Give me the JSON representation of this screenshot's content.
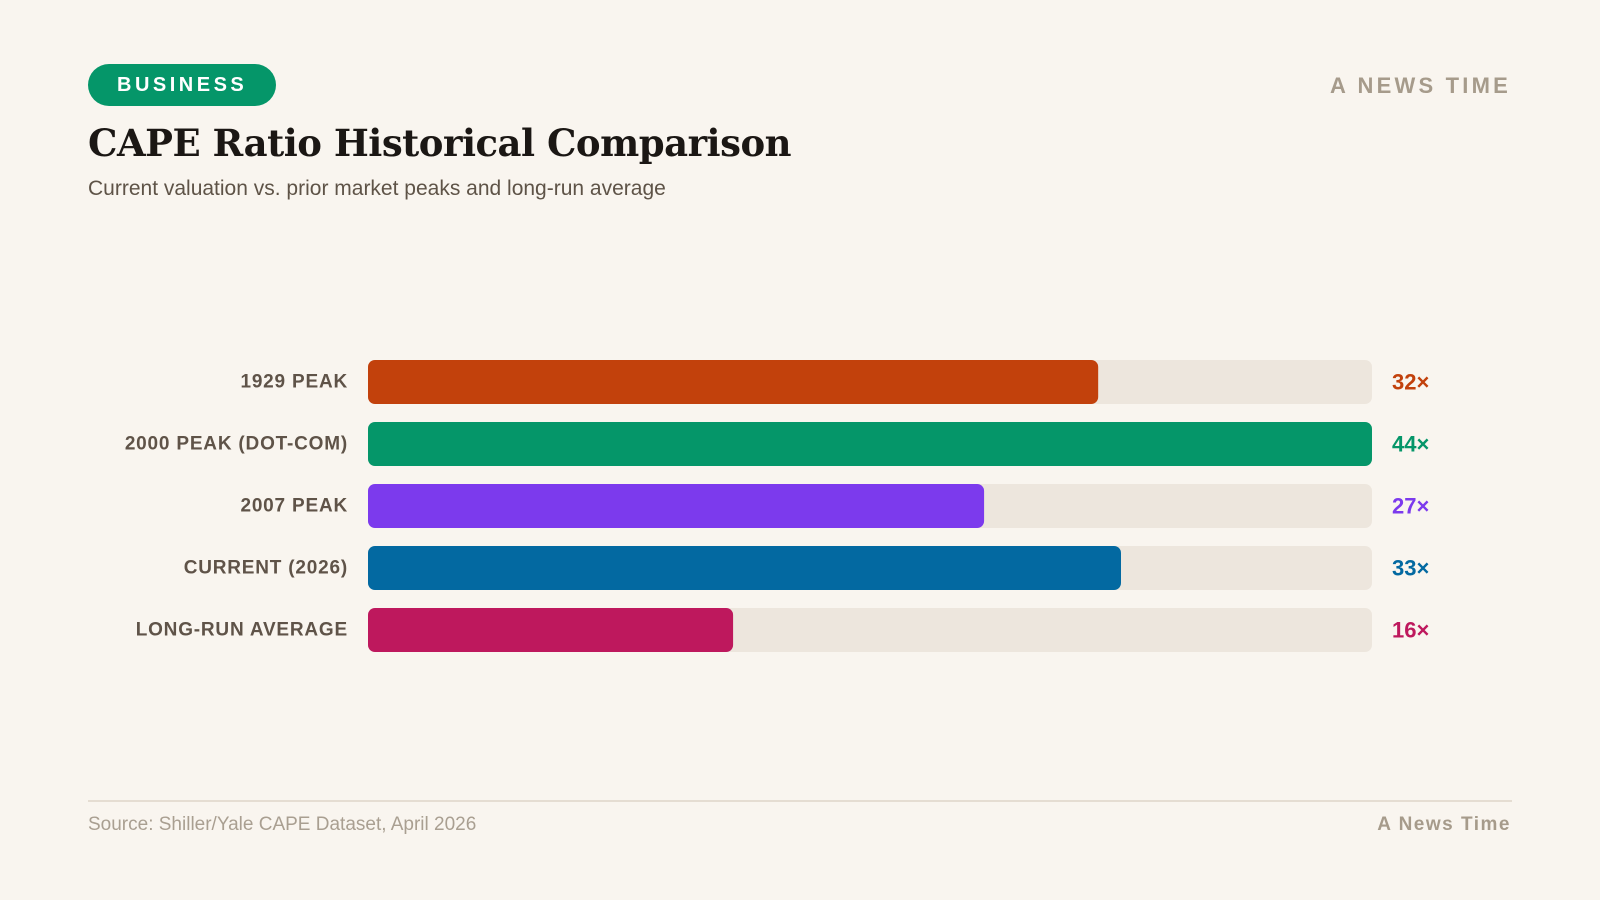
{
  "header": {
    "category_badge": "BUSINESS",
    "brand": "A NEWS TIME",
    "title": "CAPE Ratio Historical Comparison",
    "subtitle": "Current valuation vs. prior market peaks and long-run average"
  },
  "footer": {
    "source": "Source: Shiller/Yale CAPE Dataset, April 2026",
    "brand": "A News Time"
  },
  "colors": {
    "badge": "#059669",
    "track": "#ede6dd",
    "text_dark": "#1b1714",
    "text_muted": "#5e5347"
  },
  "chart_data": {
    "type": "bar",
    "orientation": "horizontal",
    "title": "CAPE Ratio Historical Comparison",
    "xlabel": "",
    "ylabel": "",
    "xlim": [
      0,
      44
    ],
    "grid": false,
    "legend": "none",
    "value_suffix": "×",
    "categories": [
      "1929 PEAK",
      "2000 PEAK (DOT-COM)",
      "2007 PEAK",
      "CURRENT (2026)",
      "LONG-RUN AVERAGE"
    ],
    "values": [
      32,
      44,
      27,
      33,
      16
    ],
    "value_labels": [
      "32×",
      "44×",
      "27×",
      "33×",
      "16×"
    ],
    "colors": [
      "#c2410c",
      "#059669",
      "#7c3aed",
      "#0369a1",
      "#be185d"
    ]
  }
}
